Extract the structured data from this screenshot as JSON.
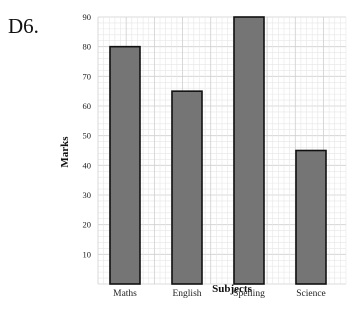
{
  "question_label": "D6.",
  "chart_data": {
    "type": "bar",
    "categories": [
      "Maths",
      "English",
      "Spelling",
      "Science"
    ],
    "values": [
      80,
      65,
      90,
      45
    ],
    "xlabel": "Subjects",
    "ylabel": "Marks",
    "ylim": [
      0,
      90
    ],
    "yticks": [
      10,
      20,
      30,
      40,
      50,
      60,
      70,
      80,
      90
    ],
    "grid": true,
    "bar_color": "#757575",
    "edge_color": "#111111"
  }
}
